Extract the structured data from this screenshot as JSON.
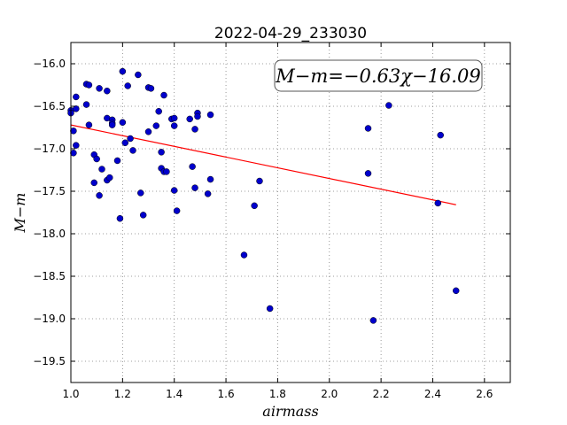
{
  "chart_data": {
    "type": "scatter",
    "title": "2022-04-29_233030",
    "xlabel": "airmass",
    "ylabel": "M−m",
    "xlim": [
      1.0,
      2.7
    ],
    "ylim": [
      -19.75,
      -15.75
    ],
    "y_inverted": true,
    "grid": true,
    "x_ticks": [
      1.0,
      1.2,
      1.4,
      1.6,
      1.8,
      2.0,
      2.2,
      2.4,
      2.6
    ],
    "x_tick_labels": [
      "1.0",
      "1.2",
      "1.4",
      "1.6",
      "1.8",
      "2.0",
      "2.2",
      "2.4",
      "2.6"
    ],
    "y_ticks": [
      -16.0,
      -16.5,
      -17.0,
      -17.5,
      -18.0,
      -18.5,
      -19.0,
      -19.5
    ],
    "y_tick_labels": [
      "−16.0",
      "−16.5",
      "−17.0",
      "−17.5",
      "−18.0",
      "−18.5",
      "−19.0",
      "−19.5"
    ],
    "series": [
      {
        "kind": "points",
        "color": "#0000cc",
        "points": [
          [
            1.0,
            -16.55
          ],
          [
            1.0,
            -16.58
          ],
          [
            1.01,
            -16.79
          ],
          [
            1.01,
            -17.05
          ],
          [
            1.02,
            -16.39
          ],
          [
            1.02,
            -16.53
          ],
          [
            1.02,
            -16.96
          ],
          [
            1.06,
            -16.24
          ],
          [
            1.06,
            -16.48
          ],
          [
            1.07,
            -16.25
          ],
          [
            1.07,
            -16.72
          ],
          [
            1.09,
            -17.07
          ],
          [
            1.09,
            -17.4
          ],
          [
            1.1,
            -17.12
          ],
          [
            1.11,
            -16.29
          ],
          [
            1.11,
            -17.55
          ],
          [
            1.12,
            -17.24
          ],
          [
            1.14,
            -16.32
          ],
          [
            1.14,
            -16.64
          ],
          [
            1.14,
            -17.37
          ],
          [
            1.15,
            -17.34
          ],
          [
            1.16,
            -16.66
          ],
          [
            1.16,
            -16.7
          ],
          [
            1.16,
            -16.72
          ],
          [
            1.18,
            -17.14
          ],
          [
            1.19,
            -17.82
          ],
          [
            1.2,
            -16.09
          ],
          [
            1.2,
            -16.69
          ],
          [
            1.21,
            -16.93
          ],
          [
            1.22,
            -16.26
          ],
          [
            1.23,
            -16.88
          ],
          [
            1.24,
            -17.02
          ],
          [
            1.26,
            -16.13
          ],
          [
            1.27,
            -17.52
          ],
          [
            1.28,
            -17.78
          ],
          [
            1.3,
            -16.28
          ],
          [
            1.3,
            -16.8
          ],
          [
            1.31,
            -16.29
          ],
          [
            1.33,
            -16.73
          ],
          [
            1.34,
            -16.56
          ],
          [
            1.35,
            -17.04
          ],
          [
            1.35,
            -17.23
          ],
          [
            1.36,
            -16.37
          ],
          [
            1.36,
            -17.27
          ],
          [
            1.37,
            -17.27
          ],
          [
            1.39,
            -16.65
          ],
          [
            1.4,
            -16.64
          ],
          [
            1.4,
            -16.73
          ],
          [
            1.4,
            -17.49
          ],
          [
            1.41,
            -17.73
          ],
          [
            1.46,
            -16.65
          ],
          [
            1.47,
            -17.21
          ],
          [
            1.48,
            -17.46
          ],
          [
            1.49,
            -16.58
          ],
          [
            1.49,
            -16.62
          ],
          [
            1.48,
            -16.77
          ],
          [
            1.53,
            -17.53
          ],
          [
            1.54,
            -17.36
          ],
          [
            1.54,
            -16.6
          ],
          [
            1.67,
            -18.25
          ],
          [
            1.71,
            -17.67
          ],
          [
            1.73,
            -17.38
          ],
          [
            1.77,
            -18.88
          ],
          [
            2.15,
            -16.76
          ],
          [
            2.15,
            -17.29
          ],
          [
            2.17,
            -19.02
          ],
          [
            2.23,
            -16.49
          ],
          [
            2.42,
            -17.64
          ],
          [
            2.43,
            -16.84
          ],
          [
            2.49,
            -18.67
          ]
        ]
      },
      {
        "kind": "fit-line",
        "color": "#ff0000",
        "slope": -0.63,
        "intercept": -16.09,
        "x_range": [
          1.0,
          2.49
        ]
      }
    ],
    "annotation": {
      "text": "M−m=−0.63χ−16.09",
      "placement": "top-right"
    }
  }
}
